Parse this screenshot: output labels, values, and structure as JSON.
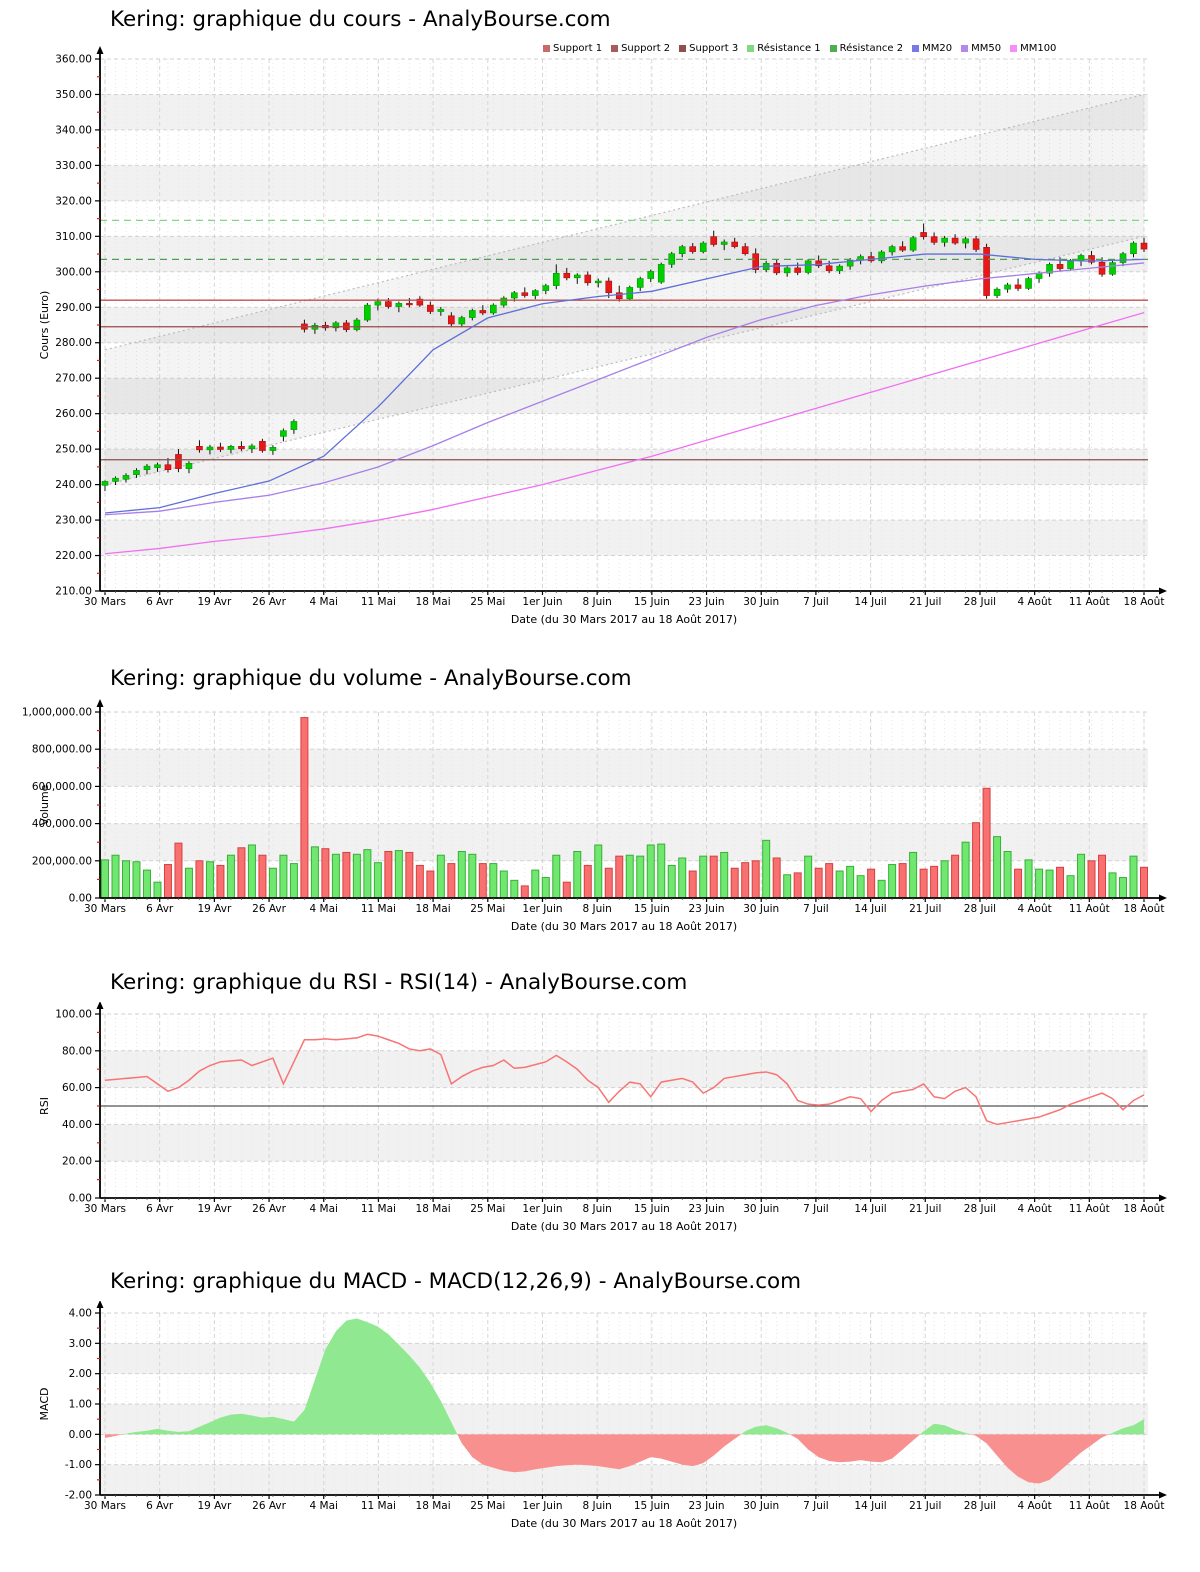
{
  "x_axis": {
    "tick_labels": [
      "30 Mars",
      "6 Avr",
      "19 Avr",
      "26 Avr",
      "4 Mai",
      "11 Mai",
      "18 Mai",
      "25 Mai",
      "1er Juin",
      "8 Juin",
      "15 Juin",
      "23 Juin",
      "30 Juin",
      "7 Juil",
      "14 Juil",
      "21 Juil",
      "28 Juil",
      "4 Août",
      "11 Août",
      "18 Août"
    ],
    "title": "Date (du 30 Mars 2017 au 18 Août 2017)"
  },
  "chart_data": [
    {
      "type": "candlestick",
      "title": "Kering: graphique du cours - AnalyBourse.com",
      "ylabel": "Cours (Euro)",
      "xlabel": "Date (du 30 Mars 2017 au 18 Août 2017)",
      "ylim": [
        210,
        360
      ],
      "y_step": 10,
      "grid": true,
      "legend": [
        {
          "label": "Support 1",
          "color": "#c86a6a"
        },
        {
          "label": "Support 2",
          "color": "#a85b5b"
        },
        {
          "label": "Support 3",
          "color": "#8f4f4f"
        },
        {
          "label": "Résistance 1",
          "color": "#80d880"
        },
        {
          "label": "Résistance 2",
          "color": "#4faf4f"
        },
        {
          "label": "MM20",
          "color": "#7878e8"
        },
        {
          "label": "MM50",
          "color": "#b388e8"
        },
        {
          "label": "MM100",
          "color": "#f88cf8"
        }
      ],
      "levels": [
        {
          "name": "Support 1",
          "value": 292.0,
          "color": "#c05050",
          "dashed": false
        },
        {
          "name": "Support 2",
          "value": 284.5,
          "color": "#9a4a4a",
          "dashed": false
        },
        {
          "name": "Support 3",
          "value": 247.0,
          "color": "#8a5050",
          "dashed": false
        },
        {
          "name": "Résistance 1",
          "value": 314.5,
          "color": "#7fd87f",
          "dashed": true
        },
        {
          "name": "Résistance 2",
          "value": 303.5,
          "color": "#4f9f4f",
          "dashed": true
        }
      ],
      "trend_channel": {
        "upper": [
          278,
          350
        ],
        "lower": [
          240,
          310
        ],
        "color": "#bbbbbb"
      },
      "series": [
        {
          "name": "MM20",
          "color": "#5f6fd8",
          "values": [
            232,
            233.5,
            237.5,
            241,
            248,
            262,
            278,
            287,
            291,
            293,
            294.5,
            298,
            301.5,
            302,
            303.5,
            305,
            305,
            303.5,
            303,
            303.5
          ]
        },
        {
          "name": "MM50",
          "color": "#a87fe8",
          "values": [
            231.5,
            232.5,
            235,
            237,
            240.5,
            245,
            251,
            257.5,
            263.5,
            269.5,
            275.5,
            281.5,
            286.5,
            290.5,
            293.5,
            296,
            298,
            299.5,
            301,
            302.5
          ]
        },
        {
          "name": "MM100",
          "color": "#f070f0",
          "values": [
            220.5,
            222,
            224,
            225.5,
            227.5,
            230,
            233,
            236.5,
            240,
            244,
            248,
            252.5,
            257,
            261.5,
            266,
            270.5,
            275,
            279.5,
            284,
            288.5
          ]
        }
      ],
      "colors": {
        "up": "#00ce00",
        "down": "#e81818",
        "wick": "#111111"
      },
      "candles": [
        [
          239.8,
          241.2,
          238.2,
          240.9
        ],
        [
          240.9,
          242.3,
          239.9,
          241.8
        ],
        [
          241.5,
          243.2,
          240.6,
          242.6
        ],
        [
          242.8,
          244.6,
          241.9,
          244.0
        ],
        [
          244.2,
          245.8,
          242.9,
          245.2
        ],
        [
          244.8,
          246.2,
          243.6,
          245.6
        ],
        [
          245.6,
          247.5,
          243.4,
          244.2
        ],
        [
          248.5,
          250.0,
          243.5,
          244.5
        ],
        [
          244.5,
          246.6,
          243.2,
          246.0
        ],
        [
          250.8,
          252.5,
          249.0,
          249.8
        ],
        [
          249.8,
          251.2,
          248.5,
          250.6
        ],
        [
          250.6,
          251.8,
          249.2,
          249.9
        ],
        [
          249.9,
          251.2,
          248.8,
          250.8
        ],
        [
          250.8,
          252.2,
          249.5,
          250.1
        ],
        [
          250.1,
          251.5,
          248.9,
          250.9
        ],
        [
          252.2,
          252.9,
          249.0,
          249.6
        ],
        [
          249.6,
          251.1,
          248.4,
          250.5
        ],
        [
          253.6,
          255.8,
          252.2,
          255.2
        ],
        [
          255.5,
          258.4,
          254.3,
          257.8
        ],
        [
          285.3,
          286.5,
          282.9,
          283.8
        ],
        [
          283.8,
          285.6,
          282.5,
          284.9
        ],
        [
          284.9,
          285.9,
          283.4,
          284.2
        ],
        [
          284.2,
          286.1,
          283.2,
          285.6
        ],
        [
          285.6,
          286.4,
          283.0,
          283.7
        ],
        [
          283.7,
          287.0,
          283.2,
          286.4
        ],
        [
          286.4,
          291.2,
          285.9,
          290.6
        ],
        [
          290.6,
          292.4,
          289.1,
          291.6
        ],
        [
          291.6,
          292.6,
          289.6,
          290.2
        ],
        [
          290.2,
          291.6,
          288.6,
          291.1
        ],
        [
          291.1,
          292.6,
          290.0,
          290.7
        ],
        [
          292.3,
          293.1,
          290.1,
          290.6
        ],
        [
          290.6,
          291.6,
          288.1,
          288.8
        ],
        [
          288.8,
          290.1,
          287.6,
          289.4
        ],
        [
          287.6,
          288.6,
          284.6,
          285.3
        ],
        [
          285.3,
          287.6,
          284.4,
          287.1
        ],
        [
          287.1,
          289.6,
          286.3,
          289.1
        ],
        [
          289.1,
          290.6,
          287.8,
          288.4
        ],
        [
          288.4,
          291.1,
          287.9,
          290.6
        ],
        [
          290.6,
          293.1,
          289.9,
          292.6
        ],
        [
          292.6,
          294.6,
          291.6,
          294.1
        ],
        [
          294.1,
          295.6,
          292.7,
          293.3
        ],
        [
          293.3,
          295.1,
          292.3,
          294.7
        ],
        [
          294.7,
          296.6,
          293.7,
          296.1
        ],
        [
          296.1,
          302.1,
          295.1,
          299.6
        ],
        [
          299.6,
          301.1,
          297.6,
          298.3
        ],
        [
          298.3,
          299.6,
          296.6,
          299.1
        ],
        [
          299.1,
          300.1,
          296.1,
          296.9
        ],
        [
          296.9,
          298.1,
          295.6,
          297.4
        ],
        [
          297.4,
          298.4,
          292.6,
          294.1
        ],
        [
          294.1,
          296.1,
          291.6,
          292.4
        ],
        [
          292.4,
          296.1,
          291.9,
          295.6
        ],
        [
          295.6,
          298.6,
          294.6,
          298.1
        ],
        [
          298.1,
          300.6,
          297.1,
          300.1
        ],
        [
          297.1,
          302.6,
          296.6,
          302.1
        ],
        [
          302.1,
          305.6,
          301.1,
          305.1
        ],
        [
          305.1,
          307.6,
          304.1,
          307.1
        ],
        [
          307.1,
          308.1,
          305.1,
          305.7
        ],
        [
          305.7,
          308.6,
          305.2,
          308.1
        ],
        [
          309.9,
          311.6,
          307.1,
          307.7
        ],
        [
          307.7,
          309.1,
          306.1,
          308.4
        ],
        [
          308.4,
          309.6,
          306.6,
          307.1
        ],
        [
          307.1,
          308.1,
          304.6,
          305.1
        ],
        [
          305.1,
          306.6,
          299.6,
          300.6
        ],
        [
          300.6,
          303.1,
          299.9,
          302.4
        ],
        [
          302.4,
          303.6,
          299.1,
          299.7
        ],
        [
          299.7,
          301.6,
          298.6,
          301.1
        ],
        [
          301.1,
          302.6,
          299.1,
          299.8
        ],
        [
          299.8,
          303.6,
          299.3,
          303.1
        ],
        [
          303.1,
          304.6,
          301.1,
          301.7
        ],
        [
          301.7,
          303.1,
          299.6,
          300.3
        ],
        [
          300.3,
          302.1,
          299.4,
          301.6
        ],
        [
          301.6,
          303.9,
          300.6,
          303.3
        ],
        [
          303.3,
          304.9,
          302.1,
          304.3
        ],
        [
          304.3,
          305.6,
          302.6,
          303.1
        ],
        [
          303.1,
          306.1,
          302.4,
          305.6
        ],
        [
          305.6,
          307.6,
          304.6,
          307.1
        ],
        [
          307.1,
          308.6,
          305.6,
          306.1
        ],
        [
          306.1,
          310.1,
          305.6,
          309.6
        ],
        [
          311.1,
          313.6,
          309.1,
          309.9
        ],
        [
          309.9,
          311.1,
          307.6,
          308.3
        ],
        [
          308.3,
          310.1,
          307.1,
          309.5
        ],
        [
          309.5,
          310.6,
          307.6,
          308.1
        ],
        [
          308.1,
          309.9,
          306.6,
          309.3
        ],
        [
          309.3,
          310.1,
          305.6,
          306.3
        ],
        [
          306.9,
          307.9,
          292.4,
          293.3
        ],
        [
          293.3,
          295.6,
          292.6,
          295.1
        ],
        [
          295.1,
          296.9,
          294.1,
          296.3
        ],
        [
          296.3,
          298.1,
          294.6,
          295.3
        ],
        [
          295.3,
          298.6,
          294.9,
          298.1
        ],
        [
          298.1,
          300.1,
          296.9,
          299.6
        ],
        [
          299.6,
          302.6,
          298.6,
          302.1
        ],
        [
          302.1,
          304.1,
          300.1,
          300.9
        ],
        [
          300.9,
          303.6,
          300.3,
          303.1
        ],
        [
          303.1,
          305.1,
          301.6,
          304.6
        ],
        [
          304.6,
          305.9,
          302.1,
          302.7
        ],
        [
          302.7,
          304.1,
          298.6,
          299.3
        ],
        [
          299.3,
          303.1,
          298.9,
          302.6
        ],
        [
          302.6,
          305.6,
          301.6,
          305.1
        ],
        [
          305.1,
          308.6,
          304.1,
          308.1
        ],
        [
          308.1,
          309.6,
          305.6,
          306.4
        ]
      ]
    },
    {
      "type": "bar",
      "title": "Kering: graphique du volume - AnalyBourse.com",
      "ylabel": "Volume",
      "xlabel": "Date (du 30 Mars 2017 au 18 Août 2017)",
      "ylim": [
        0,
        1000000
      ],
      "y_step": 200000,
      "colors": {
        "up_fill": "#70e870",
        "up_stroke": "#38b038",
        "down_fill": "#f87070",
        "down_stroke": "#d84040"
      },
      "values": [
        205000,
        230000,
        200000,
        195000,
        150000,
        85000,
        180000,
        295000,
        160000,
        200000,
        195000,
        175000,
        230000,
        270000,
        285000,
        230000,
        160000,
        230000,
        185000,
        970000,
        275000,
        265000,
        235000,
        245000,
        235000,
        260000,
        190000,
        250000,
        255000,
        245000,
        175000,
        145000,
        230000,
        185000,
        250000,
        235000,
        185000,
        185000,
        145000,
        95000,
        65000,
        150000,
        110000,
        230000,
        85000,
        250000,
        175000,
        285000,
        160000,
        225000,
        230000,
        225000,
        285000,
        290000,
        175000,
        215000,
        145000,
        225000,
        225000,
        245000,
        160000,
        190000,
        200000,
        310000,
        215000,
        125000,
        135000,
        225000,
        160000,
        185000,
        145000,
        170000,
        120000,
        155000,
        95000,
        180000,
        185000,
        245000,
        155000,
        170000,
        200000,
        230000,
        300000,
        405000,
        590000,
        330000,
        250000,
        155000,
        205000,
        155000,
        150000,
        165000,
        120000,
        235000,
        200000,
        230000,
        135000,
        110000,
        225000,
        165000
      ]
    },
    {
      "type": "line",
      "title": "Kering: graphique du RSI - RSI(14) - AnalyBourse.com",
      "ylabel": "RSI",
      "xlabel": "Date (du 30 Mars 2017 au 18 Août 2017)",
      "ylim": [
        0,
        100
      ],
      "y_step": 20,
      "midline": 50,
      "line_color": "#f87474",
      "values": [
        64,
        64.5,
        65,
        65.5,
        66,
        62,
        58,
        60,
        64,
        69,
        72,
        74,
        74.5,
        75,
        72,
        74,
        76,
        62,
        74,
        86,
        86,
        86.5,
        86,
        86.5,
        87,
        89,
        88,
        86,
        84,
        81,
        80,
        81,
        78,
        62,
        66,
        69,
        71,
        72,
        75,
        70.5,
        71,
        72.5,
        74,
        77.5,
        74,
        70,
        64,
        60,
        52,
        58,
        63,
        62,
        55,
        63,
        64,
        65,
        63,
        57,
        60,
        65,
        66,
        67,
        68,
        68.5,
        67,
        62,
        53,
        51,
        50.5,
        51,
        53,
        55,
        54,
        47,
        53,
        57,
        58,
        59,
        62,
        55,
        54,
        58,
        60,
        55,
        42,
        40,
        41,
        42,
        43,
        44,
        46,
        48,
        51,
        53,
        55,
        57,
        54,
        48,
        53,
        56
      ]
    },
    {
      "type": "area",
      "title": "Kering: graphique du MACD - MACD(12,26,9) - AnalyBourse.com",
      "ylabel": "MACD",
      "xlabel": "Date (du 30 Mars 2017 au 18 Août 2017)",
      "ylim": [
        -2,
        4
      ],
      "y_step": 1,
      "colors": {
        "positive": "#90e890",
        "negative": "#f89090"
      },
      "values": [
        -0.12,
        -0.05,
        0.02,
        0.08,
        0.12,
        0.18,
        0.12,
        0.08,
        0.1,
        0.25,
        0.4,
        0.55,
        0.65,
        0.68,
        0.62,
        0.55,
        0.58,
        0.5,
        0.42,
        0.8,
        1.8,
        2.8,
        3.4,
        3.75,
        3.82,
        3.7,
        3.55,
        3.3,
        2.95,
        2.6,
        2.2,
        1.7,
        1.1,
        0.4,
        -0.3,
        -0.75,
        -1.0,
        -1.1,
        -1.2,
        -1.25,
        -1.22,
        -1.15,
        -1.1,
        -1.05,
        -1.02,
        -1.0,
        -1.02,
        -1.05,
        -1.1,
        -1.15,
        -1.05,
        -0.9,
        -0.75,
        -0.8,
        -0.9,
        -1.0,
        -1.05,
        -0.95,
        -0.7,
        -0.4,
        -0.15,
        0.1,
        0.25,
        0.3,
        0.2,
        0.05,
        -0.15,
        -0.5,
        -0.75,
        -0.88,
        -0.92,
        -0.9,
        -0.85,
        -0.9,
        -0.92,
        -0.8,
        -0.5,
        -0.2,
        0.1,
        0.35,
        0.3,
        0.15,
        0.05,
        -0.05,
        -0.3,
        -0.7,
        -1.1,
        -1.4,
        -1.58,
        -1.62,
        -1.5,
        -1.2,
        -0.9,
        -0.6,
        -0.35,
        -0.1,
        0.05,
        0.2,
        0.3,
        0.5
      ]
    }
  ]
}
